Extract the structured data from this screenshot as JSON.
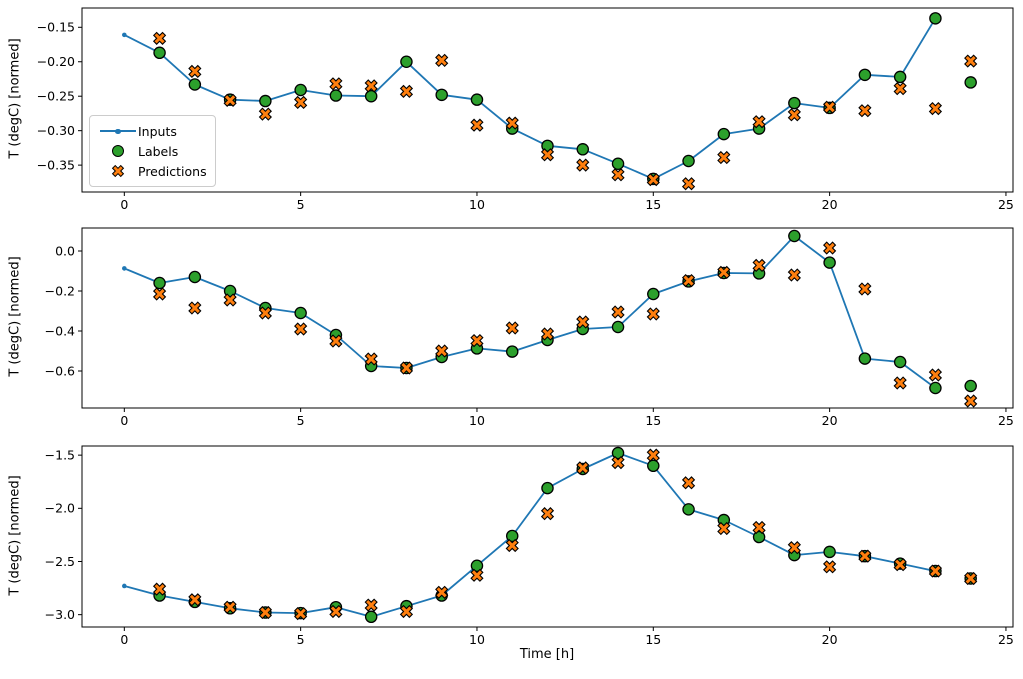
{
  "figure": {
    "shared_ylabel": "T (degC) [normed]",
    "xlabel": "Time [h]",
    "colors": {
      "inputs": "#1f77b4",
      "labels": "#2ca02c",
      "predictions": "#ff7f0e",
      "marker_edge": "#000000"
    },
    "legend": {
      "position": "upper-left of top subplot"
    }
  },
  "chart_data": [
    {
      "type": "line",
      "title": "",
      "xlabel": "",
      "ylabel": "T (degC) [normed]",
      "xlim": [
        -1.2,
        25.2
      ],
      "ylim": [
        -0.389,
        -0.122
      ],
      "x_ticks": [
        0,
        5,
        10,
        15,
        20,
        25
      ],
      "x_tick_labels": [
        "0",
        "5",
        "10",
        "15",
        "20",
        "25"
      ],
      "y_ticks": [
        -0.15,
        -0.2,
        -0.25,
        -0.3,
        -0.35
      ],
      "y_tick_labels": [
        "-0.15",
        "-0.20",
        "-0.25",
        "-0.30",
        "-0.35"
      ],
      "grid": false,
      "legend_visible": true,
      "series": [
        {
          "name": "Inputs",
          "type": "line",
          "marker": "dot",
          "color": "#1f77b4",
          "x_start": 0,
          "y": [
            -0.161,
            -0.187,
            -0.233,
            -0.255,
            -0.257,
            -0.241,
            -0.249,
            -0.25,
            -0.2,
            -0.248,
            -0.255,
            -0.297,
            -0.322,
            -0.327,
            -0.348,
            -0.37,
            -0.344,
            -0.305,
            -0.297,
            -0.26,
            -0.267,
            -0.219,
            -0.222,
            -0.137
          ]
        },
        {
          "name": "Labels",
          "type": "scatter",
          "marker": "circle",
          "color": "#2ca02c",
          "x_start": 1,
          "y": [
            -0.187,
            -0.233,
            -0.255,
            -0.257,
            -0.241,
            -0.249,
            -0.25,
            -0.2,
            -0.248,
            -0.255,
            -0.297,
            -0.322,
            -0.327,
            -0.348,
            -0.37,
            -0.344,
            -0.305,
            -0.297,
            -0.26,
            -0.267,
            -0.219,
            -0.222,
            -0.137,
            -0.23
          ]
        },
        {
          "name": "Predictions",
          "type": "scatter",
          "marker": "X",
          "color": "#ff7f0e",
          "x_start": 1,
          "y": [
            -0.166,
            -0.214,
            -0.256,
            -0.276,
            -0.259,
            -0.232,
            -0.235,
            -0.243,
            -0.198,
            -0.292,
            -0.289,
            -0.335,
            -0.35,
            -0.364,
            -0.371,
            -0.377,
            -0.339,
            -0.287,
            -0.277,
            -0.266,
            -0.271,
            -0.239,
            -0.268,
            -0.199
          ]
        }
      ]
    },
    {
      "type": "line",
      "title": "",
      "xlabel": "",
      "ylabel": "T (degC) [normed]",
      "xlim": [
        -1.2,
        25.2
      ],
      "ylim": [
        -0.785,
        0.115
      ],
      "x_ticks": [
        0,
        5,
        10,
        15,
        20,
        25
      ],
      "x_tick_labels": [
        "0",
        "5",
        "10",
        "15",
        "20",
        "25"
      ],
      "y_ticks": [
        0.0,
        -0.2,
        -0.4,
        -0.6
      ],
      "y_tick_labels": [
        "0.0",
        "-0.2",
        "-0.4",
        "-0.6"
      ],
      "grid": false,
      "legend_visible": false,
      "series": [
        {
          "name": "Inputs",
          "type": "line",
          "marker": "dot",
          "color": "#1f77b4",
          "x_start": 0,
          "y": [
            -0.087,
            -0.16,
            -0.13,
            -0.2,
            -0.285,
            -0.31,
            -0.42,
            -0.575,
            -0.585,
            -0.53,
            -0.487,
            -0.503,
            -0.445,
            -0.39,
            -0.38,
            -0.215,
            -0.152,
            -0.11,
            -0.112,
            0.075,
            -0.058,
            -0.538,
            -0.555,
            -0.685
          ]
        },
        {
          "name": "Labels",
          "type": "scatter",
          "marker": "circle",
          "color": "#2ca02c",
          "x_start": 1,
          "y": [
            -0.16,
            -0.13,
            -0.2,
            -0.285,
            -0.31,
            -0.42,
            -0.575,
            -0.585,
            -0.53,
            -0.487,
            -0.503,
            -0.445,
            -0.39,
            -0.38,
            -0.215,
            -0.152,
            -0.11,
            -0.112,
            0.075,
            -0.058,
            -0.538,
            -0.555,
            -0.685,
            -0.675
          ]
        },
        {
          "name": "Predictions",
          "type": "scatter",
          "marker": "X",
          "color": "#ff7f0e",
          "x_start": 1,
          "y": [
            -0.215,
            -0.285,
            -0.245,
            -0.31,
            -0.39,
            -0.45,
            -0.54,
            -0.585,
            -0.5,
            -0.448,
            -0.385,
            -0.415,
            -0.355,
            -0.305,
            -0.315,
            -0.148,
            -0.107,
            -0.072,
            -0.12,
            0.015,
            -0.19,
            -0.66,
            -0.62,
            -0.75
          ]
        }
      ]
    },
    {
      "type": "line",
      "title": "",
      "xlabel": "Time [h]",
      "ylabel": "T (degC) [normed]",
      "xlim": [
        -1.2,
        25.2
      ],
      "ylim": [
        -3.116,
        -1.414
      ],
      "x_ticks": [
        0,
        5,
        10,
        15,
        20,
        25
      ],
      "x_tick_labels": [
        "0",
        "5",
        "10",
        "15",
        "20",
        "25"
      ],
      "y_ticks": [
        -1.5,
        -2.0,
        -2.5,
        -3.0
      ],
      "y_tick_labels": [
        "-1.5",
        "-2.0",
        "-2.5",
        "-3.0"
      ],
      "grid": false,
      "legend_visible": false,
      "series": [
        {
          "name": "Inputs",
          "type": "line",
          "marker": "dot",
          "color": "#1f77b4",
          "x_start": 0,
          "y": [
            -2.73,
            -2.82,
            -2.88,
            -2.94,
            -2.98,
            -2.985,
            -2.93,
            -3.02,
            -2.92,
            -2.82,
            -2.54,
            -2.26,
            -1.81,
            -1.63,
            -1.48,
            -1.6,
            -2.01,
            -2.11,
            -2.27,
            -2.44,
            -2.41,
            -2.45,
            -2.52,
            -2.59
          ]
        },
        {
          "name": "Labels",
          "type": "scatter",
          "marker": "circle",
          "color": "#2ca02c",
          "x_start": 1,
          "y": [
            -2.82,
            -2.88,
            -2.94,
            -2.98,
            -2.985,
            -2.93,
            -3.02,
            -2.92,
            -2.82,
            -2.54,
            -2.26,
            -1.81,
            -1.63,
            -1.48,
            -1.6,
            -2.01,
            -2.11,
            -2.27,
            -2.44,
            -2.41,
            -2.45,
            -2.52,
            -2.59,
            -2.66
          ]
        },
        {
          "name": "Predictions",
          "type": "scatter",
          "marker": "X",
          "color": "#ff7f0e",
          "x_start": 1,
          "y": [
            -2.76,
            -2.86,
            -2.93,
            -2.98,
            -2.99,
            -2.97,
            -2.91,
            -2.97,
            -2.79,
            -2.63,
            -2.35,
            -2.05,
            -1.62,
            -1.57,
            -1.5,
            -1.76,
            -2.19,
            -2.18,
            -2.37,
            -2.55,
            -2.45,
            -2.53,
            -2.59,
            -2.66
          ]
        }
      ]
    }
  ]
}
